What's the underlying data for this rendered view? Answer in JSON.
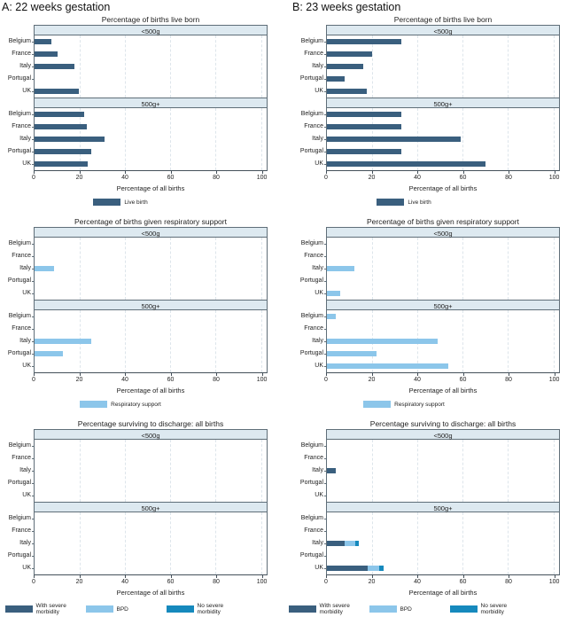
{
  "headings": [
    {
      "label": "A: 22 weeks gestation"
    },
    {
      "label": "B: 23 weeks gestation"
    }
  ],
  "colors": {
    "dark": "#3a5f7e",
    "light": "#8cc6ea",
    "bright": "#1689bd",
    "band_bg": "#dde9f0",
    "border": "#5f6e78",
    "grid": "#dde5eb"
  },
  "chart_data": [
    {
      "type": "bar",
      "row": 0,
      "column": 0,
      "title": "Percentage of births live born",
      "categories": [
        "Belgium",
        "France",
        "Italy",
        "Portugal",
        "UK"
      ],
      "xlabel": "Percentage of all births",
      "xlim": [
        0,
        100
      ],
      "xticks": [
        0,
        20,
        40,
        60,
        80,
        100
      ],
      "grid": true,
      "legend_position": "bottom",
      "panels": [
        {
          "label": "<500g",
          "series": [
            {
              "name": "Live birth",
              "color_key": "dark",
              "values": [
                7.5,
                10,
                17.5,
                0,
                19.5
              ]
            }
          ]
        },
        {
          "label": "500g+",
          "series": [
            {
              "name": "Live birth",
              "color_key": "dark",
              "values": [
                22,
                23,
                31,
                25,
                23.5
              ]
            }
          ]
        }
      ],
      "legend": [
        {
          "label": "Live birth",
          "color_key": "dark"
        }
      ]
    },
    {
      "type": "bar",
      "row": 0,
      "column": 1,
      "title": "Percentage of births live born",
      "categories": [
        "Belgium",
        "France",
        "Italy",
        "Portugal",
        "UK"
      ],
      "xlabel": "Percentage of all births",
      "xlim": [
        0,
        100
      ],
      "xticks": [
        0,
        20,
        40,
        60,
        80,
        100
      ],
      "grid": true,
      "legend_position": "bottom",
      "panels": [
        {
          "label": "<500g",
          "series": [
            {
              "name": "Live birth",
              "color_key": "dark",
              "values": [
                33,
                20,
                16,
                8,
                17.5
              ]
            }
          ]
        },
        {
          "label": "500g+",
          "series": [
            {
              "name": "Live birth",
              "color_key": "dark",
              "values": [
                33,
                33,
                59,
                33,
                70
              ]
            }
          ]
        }
      ],
      "legend": [
        {
          "label": "Live birth",
          "color_key": "dark"
        }
      ]
    },
    {
      "type": "bar",
      "row": 1,
      "column": 0,
      "title": "Percentage of births given respiratory support",
      "categories": [
        "Belgium",
        "France",
        "Italy",
        "Portugal",
        "UK"
      ],
      "xlabel": "Percentage of all births",
      "xlim": [
        0,
        100
      ],
      "xticks": [
        0,
        20,
        40,
        60,
        80,
        100
      ],
      "grid": true,
      "legend_position": "bottom",
      "panels": [
        {
          "label": "<500g",
          "series": [
            {
              "name": "Respiratory support",
              "color_key": "light",
              "values": [
                0,
                0,
                8.5,
                0,
                0
              ]
            }
          ]
        },
        {
          "label": "500g+",
          "series": [
            {
              "name": "Respiratory support",
              "color_key": "light",
              "values": [
                0,
                0,
                25,
                12.5,
                0
              ]
            }
          ]
        }
      ],
      "legend": [
        {
          "label": "Respiratory support",
          "color_key": "light"
        }
      ]
    },
    {
      "type": "bar",
      "row": 1,
      "column": 1,
      "title": "Percentage of births given respiratory support",
      "categories": [
        "Belgium",
        "France",
        "Italy",
        "Portugal",
        "UK"
      ],
      "xlabel": "Percentage of all births",
      "xlim": [
        0,
        100
      ],
      "xticks": [
        0,
        20,
        40,
        60,
        80,
        100
      ],
      "grid": true,
      "legend_position": "bottom",
      "panels": [
        {
          "label": "<500g",
          "series": [
            {
              "name": "Respiratory support",
              "color_key": "light",
              "values": [
                0,
                0,
                12,
                0,
                6
              ]
            }
          ]
        },
        {
          "label": "500g+",
          "series": [
            {
              "name": "Respiratory support",
              "color_key": "light",
              "values": [
                4,
                0,
                49,
                22,
                53.5
              ]
            }
          ]
        }
      ],
      "legend": [
        {
          "label": "Respiratory support",
          "color_key": "light"
        }
      ]
    },
    {
      "type": "bar",
      "row": 2,
      "column": 0,
      "title": "Percentage surviving to discharge: all births",
      "categories": [
        "Belgium",
        "France",
        "Italy",
        "Portugal",
        "UK"
      ],
      "xlabel": "Percentage of all births",
      "xlim": [
        0,
        100
      ],
      "xticks": [
        0,
        20,
        40,
        60,
        80,
        100
      ],
      "grid": true,
      "legend_position": "bottom",
      "stacked": true,
      "panels": [
        {
          "label": "<500g",
          "series": [
            {
              "name": "With severe morbidity",
              "color_key": "dark",
              "values": [
                0,
                0,
                0,
                0,
                0
              ]
            },
            {
              "name": "BPD",
              "color_key": "light",
              "values": [
                0,
                0,
                0,
                0,
                0
              ]
            },
            {
              "name": "No severe morbidity",
              "color_key": "bright",
              "values": [
                0,
                0,
                0,
                0,
                0
              ]
            }
          ]
        },
        {
          "label": "500g+",
          "series": [
            {
              "name": "With severe morbidity",
              "color_key": "dark",
              "values": [
                0,
                0,
                0,
                0,
                0
              ]
            },
            {
              "name": "BPD",
              "color_key": "light",
              "values": [
                0,
                0,
                0,
                0,
                0
              ]
            },
            {
              "name": "No severe morbidity",
              "color_key": "bright",
              "values": [
                0,
                0,
                0,
                0,
                0
              ]
            }
          ]
        }
      ],
      "legend": [
        {
          "label": "With severe morbidity",
          "color_key": "dark"
        },
        {
          "label": "BPD",
          "color_key": "light"
        },
        {
          "label": "No severe morbidity",
          "color_key": "bright"
        }
      ]
    },
    {
      "type": "bar",
      "row": 2,
      "column": 1,
      "title": "Percentage surviving to discharge: all births",
      "categories": [
        "Belgium",
        "France",
        "Italy",
        "Portugal",
        "UK"
      ],
      "xlabel": "Percentage of all births",
      "xlim": [
        0,
        100
      ],
      "xticks": [
        0,
        20,
        40,
        60,
        80,
        100
      ],
      "grid": true,
      "legend_position": "bottom",
      "stacked": true,
      "panels": [
        {
          "label": "<500g",
          "series": [
            {
              "name": "With severe morbidity",
              "color_key": "dark",
              "values": [
                0,
                0,
                4,
                0,
                0
              ]
            },
            {
              "name": "BPD",
              "color_key": "light",
              "values": [
                0,
                0,
                0,
                0,
                0
              ]
            },
            {
              "name": "No severe morbidity",
              "color_key": "bright",
              "values": [
                0,
                0,
                0,
                0,
                0
              ]
            }
          ]
        },
        {
          "label": "500g+",
          "series": [
            {
              "name": "With severe morbidity",
              "color_key": "dark",
              "values": [
                0,
                0,
                8,
                0,
                18
              ]
            },
            {
              "name": "BPD",
              "color_key": "light",
              "values": [
                0,
                0,
                4.5,
                0,
                5
              ]
            },
            {
              "name": "No severe morbidity",
              "color_key": "bright",
              "values": [
                0,
                0,
                1.5,
                0,
                2
              ]
            }
          ]
        }
      ],
      "legend": [
        {
          "label": "With severe morbidity",
          "color_key": "dark"
        },
        {
          "label": "BPD",
          "color_key": "light"
        },
        {
          "label": "No severe morbidity",
          "color_key": "bright"
        }
      ]
    }
  ]
}
